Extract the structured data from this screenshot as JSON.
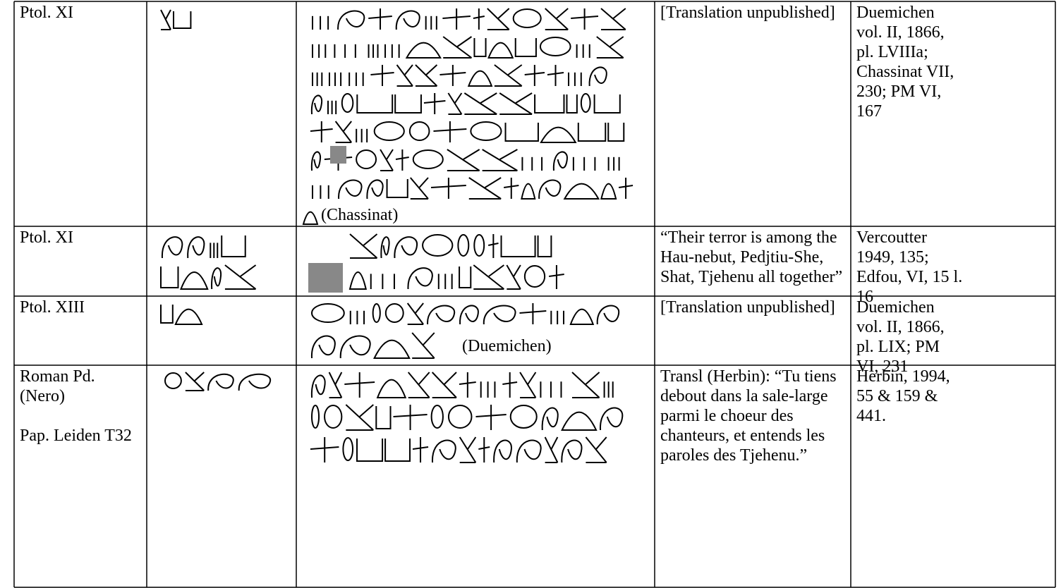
{
  "table": {
    "rows": [
      {
        "period": [
          "Ptol. XI"
        ],
        "caption": "(Chassinat)",
        "translation": "[Translation unpublished]",
        "reference": "Duemichen vol. II, 1866, pl. LVIIIa; Chassinat VII, 230; PM VI, 167"
      },
      {
        "period": [
          "Ptol. XI"
        ],
        "translation": "“Their terror is among the Hau-nebut, Pedjtiu-She, Shat, Tjehenu all together”",
        "reference": "Vercoutter 1949, 135; Edfou, VI, 15 l. 16"
      },
      {
        "period": [
          "Ptol. XIII"
        ],
        "caption": "(Duemichen)",
        "translation": "[Translation unpublished]",
        "reference": "Duemichen vol. II, 1866, pl. LIX; PM VI, 231"
      },
      {
        "period": [
          "Roman Pd. (Nero)",
          "Pap. Leiden T32"
        ],
        "translation": "Transl (Herbin): “Tu tiens debout dans la sale-large parmi le choeur des chanteurs, et entends les paroles des Tjehenu.”",
        "reference": "Herbin, 1994, 55 & 159 & 441."
      }
    ]
  }
}
